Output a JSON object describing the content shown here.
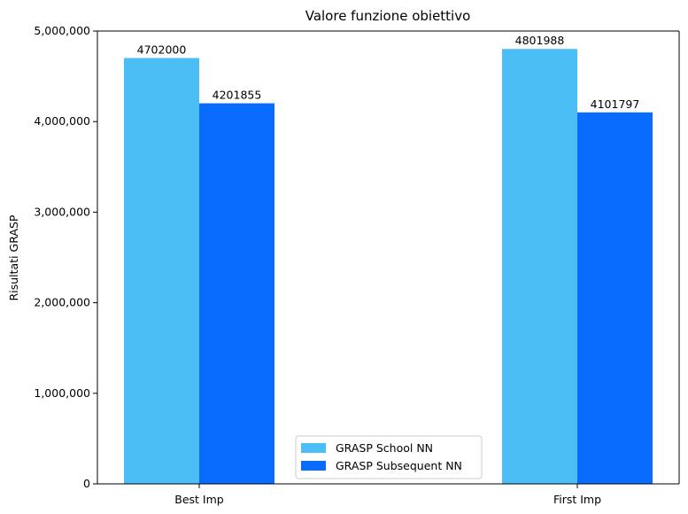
{
  "chart_data": {
    "type": "bar",
    "title": "Valore funzione obiettivo",
    "xlabel": "",
    "ylabel": "Risultati GRASP",
    "categories": [
      "Best Imp",
      "First Imp"
    ],
    "series": [
      {
        "name": "GRASP School NN",
        "values": [
          4702000,
          4801988
        ],
        "color": "#4bbef5"
      },
      {
        "name": "GRASP Subsequent NN",
        "values": [
          4201855,
          4101797
        ],
        "color": "#0a6cff"
      }
    ],
    "ylim": [
      0,
      5000000
    ],
    "yticks": [
      0,
      1000000,
      2000000,
      3000000,
      4000000,
      5000000
    ],
    "ytick_labels": [
      "0",
      "1,000,000",
      "2,000,000",
      "3,000,000",
      "4,000,000",
      "5,000,000"
    ],
    "data_labels": [
      [
        "4702000",
        "4801988"
      ],
      [
        "4201855",
        "4101797"
      ]
    ],
    "grid": false,
    "legend_position": "lower center"
  }
}
